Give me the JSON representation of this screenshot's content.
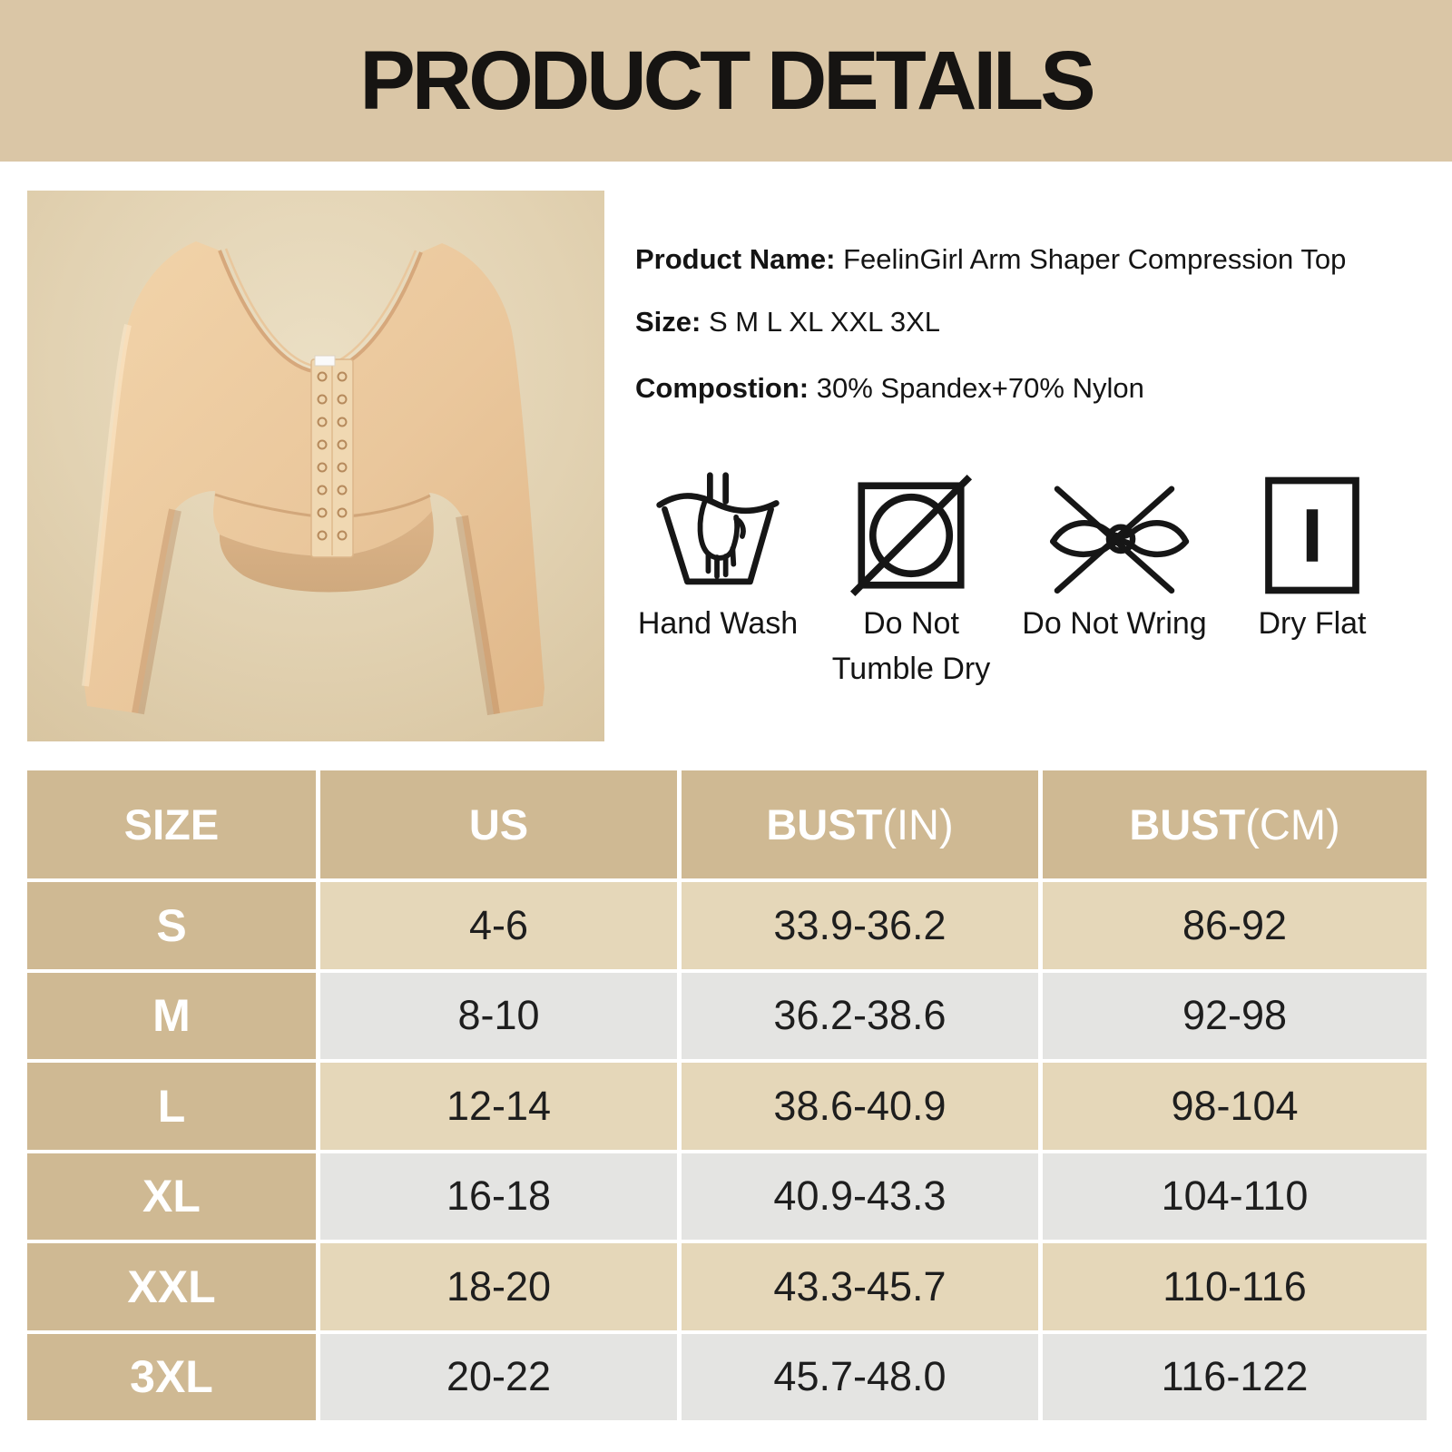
{
  "banner": {
    "title": "PRODUCT DETAILS"
  },
  "product": {
    "name_label": "Product Name:",
    "name_value": "FeelinGirl Arm Shaper Compression Top",
    "size_label": "Size:",
    "size_value": "S M L XL XXL 3XL",
    "composition_label": "Compostion:",
    "composition_value": "30% Spandex+70% Nylon"
  },
  "care": {
    "items": [
      {
        "icon": "hand-wash-icon",
        "label_lines": [
          "Hand Wash"
        ]
      },
      {
        "icon": "do-not-tumble-dry-icon",
        "label_lines": [
          "Do Not",
          "Tumble Dry"
        ]
      },
      {
        "icon": "do-not-wring-icon",
        "label_lines": [
          "Do Not Wring"
        ]
      },
      {
        "icon": "dry-flat-icon",
        "label_lines": [
          "Dry Flat"
        ]
      }
    ]
  },
  "size_table": {
    "columns": [
      {
        "label": "SIZE",
        "suffix": ""
      },
      {
        "label": "US",
        "suffix": ""
      },
      {
        "label": "BUST",
        "suffix": "(IN)"
      },
      {
        "label": "BUST",
        "suffix": "(CM)"
      }
    ],
    "rows": [
      {
        "size": "S",
        "us": "4-6",
        "bust_in": "33.9-36.2",
        "bust_cm": "86-92"
      },
      {
        "size": "M",
        "us": "8-10",
        "bust_in": "36.2-38.6",
        "bust_cm": "92-98"
      },
      {
        "size": "L",
        "us": "12-14",
        "bust_in": "38.6-40.9",
        "bust_cm": "98-104"
      },
      {
        "size": "XL",
        "us": "16-18",
        "bust_in": "40.9-43.3",
        "bust_cm": "104-110"
      },
      {
        "size": "XXL",
        "us": "18-20",
        "bust_in": "43.3-45.7",
        "bust_cm": "110-116"
      },
      {
        "size": "3XL",
        "us": "20-22",
        "bust_in": "45.7-48.0",
        "bust_cm": "116-122"
      }
    ]
  },
  "colors": {
    "banner_bg": "#dac6a6",
    "table_header_bg": "#cfb993",
    "row_beige": "#e5d7b9",
    "row_gray": "#e4e4e2",
    "photo_bg": "#e2d2b2",
    "garment": "#eccaa0",
    "text_dark": "#141414",
    "text_white": "#ffffff"
  }
}
